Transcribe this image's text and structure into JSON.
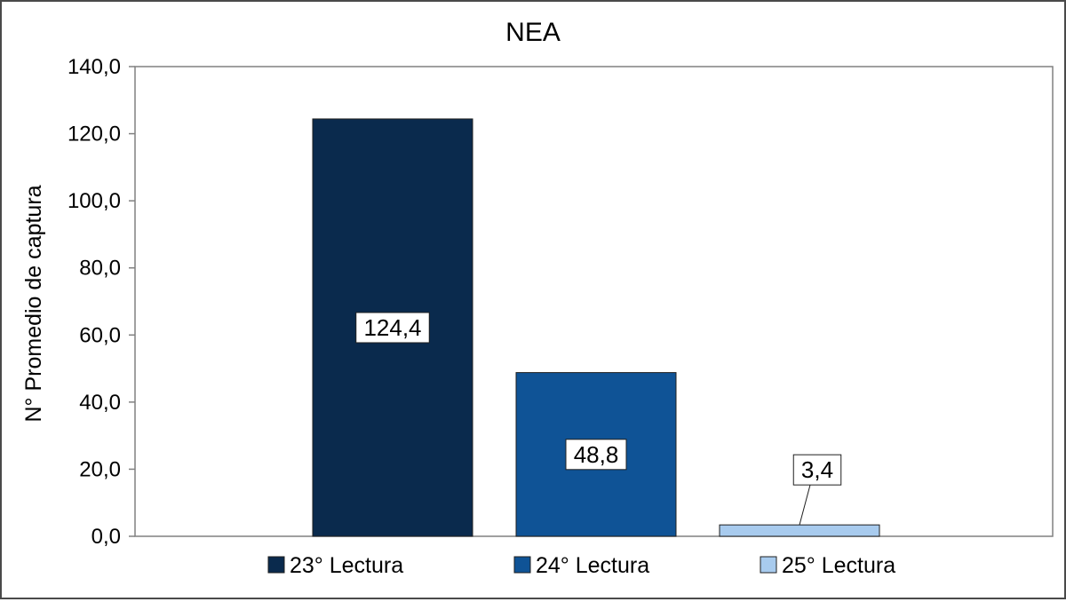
{
  "chart_data": {
    "type": "bar",
    "title": "NEA",
    "xlabel": "",
    "ylabel": "N° Promedio de captura",
    "ylim": [
      0,
      140
    ],
    "ytick_values": [
      0,
      20,
      40,
      60,
      80,
      100,
      120,
      140
    ],
    "ytick_labels": [
      "0,0",
      "20,0",
      "40,0",
      "60,0",
      "80,0",
      "100,0",
      "120,0",
      "140,0"
    ],
    "grid": false,
    "legend_position": "bottom",
    "series": [
      {
        "name": "23° Lectura",
        "values": [
          124.4
        ],
        "value_label": "124,4",
        "color": "#0a2a4d"
      },
      {
        "name": "24° Lectura",
        "values": [
          48.8
        ],
        "value_label": "48,8",
        "color": "#0f5396"
      },
      {
        "name": "25° Lectura",
        "values": [
          3.4
        ],
        "value_label": "3,4",
        "color": "#a8cbee"
      }
    ]
  }
}
